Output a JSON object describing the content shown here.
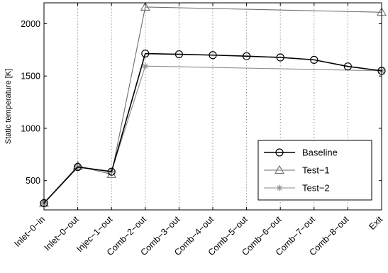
{
  "chart_data": {
    "type": "line",
    "categories": [
      "Inlet−0−in",
      "Inlet−0−out",
      "Injec−1−out",
      "Comb−2−out",
      "Comb−3−out",
      "Comb−4−out",
      "Comb−5−out",
      "Comb−6−out",
      "Comb−7−out",
      "Comb−8−out",
      "Exit"
    ],
    "ylabel": "Static temperature [K]",
    "xlabel": "",
    "ylim": [
      220,
      2200
    ],
    "yticks": [
      500,
      1000,
      1500,
      2000
    ],
    "grid": "vertical dotted",
    "legend_position": "lower-right",
    "series": [
      {
        "name": "Baseline",
        "marker": "circle",
        "color": "#000000",
        "values": [
          285,
          630,
          585,
          1715,
          1708,
          1700,
          1690,
          1678,
          1655,
          1592,
          1550
        ]
      },
      {
        "name": "Test−1",
        "marker": "triangle",
        "color": "#6e6e6e",
        "values": [
          285,
          640,
          560,
          2160,
          null,
          null,
          null,
          null,
          null,
          null,
          2110
        ]
      },
      {
        "name": "Test−2",
        "marker": "star",
        "color": "#8a8a8a",
        "values": [
          285,
          630,
          590,
          1595,
          null,
          null,
          null,
          null,
          null,
          null,
          1550
        ]
      }
    ]
  }
}
